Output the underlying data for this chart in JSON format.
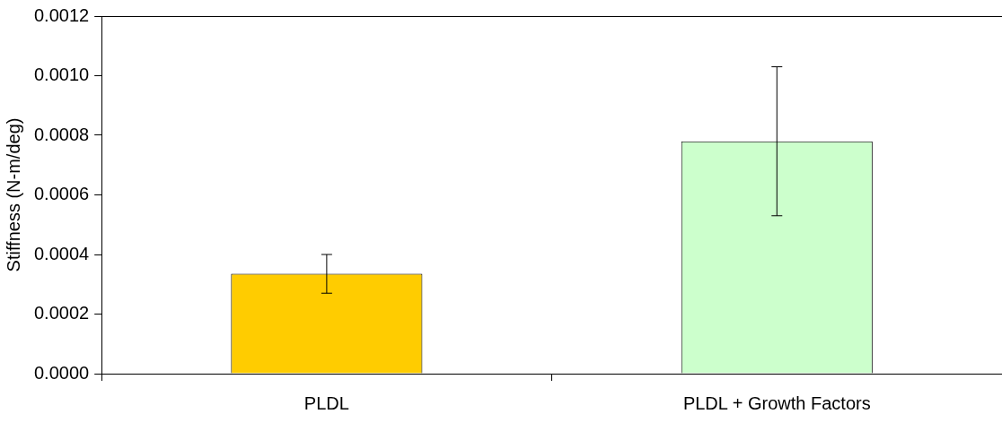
{
  "chart_data": {
    "type": "bar",
    "ylabel": "Stiffness (N-m/deg)",
    "categories": [
      "PLDL",
      "PLDL + Growth Factors"
    ],
    "values": [
      0.000335,
      0.00078
    ],
    "colors": [
      "#ffcc00",
      "#ccffcc"
    ],
    "errors": [
      [
        0.00027,
        0.0004
      ],
      [
        0.00053,
        0.00103
      ]
    ],
    "ylim": [
      0,
      0.0012
    ],
    "yticks": [
      {
        "value": 0,
        "label": "0.0000"
      },
      {
        "value": 0.0002,
        "label": "0.0002"
      },
      {
        "value": 0.0004,
        "label": "0.0004"
      },
      {
        "value": 0.0006,
        "label": "0.0006"
      },
      {
        "value": 0.0008,
        "label": "0.0008"
      },
      {
        "value": 0.001,
        "label": "0.0010"
      },
      {
        "value": 0.0012,
        "label": "0.0012"
      }
    ],
    "grid": false,
    "legend": false
  }
}
